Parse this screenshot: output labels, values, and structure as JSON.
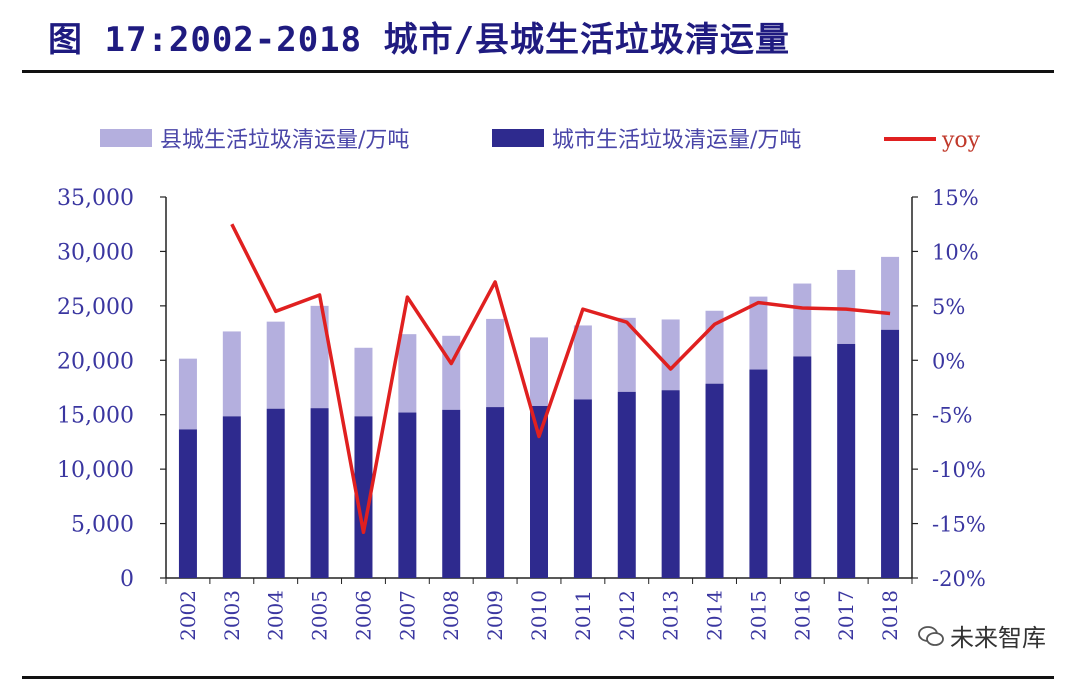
{
  "chart_data": {
    "type": "bar+line",
    "title": "图 17:2002-2018 城市/县城生活垃圾清运量",
    "categories": [
      "2002",
      "2003",
      "2004",
      "2005",
      "2006",
      "2007",
      "2008",
      "2009",
      "2010",
      "2011",
      "2012",
      "2013",
      "2014",
      "2015",
      "2016",
      "2017",
      "2018"
    ],
    "series": [
      {
        "name": "县城生活垃圾清运量/万吨",
        "type": "bar",
        "stack": "total",
        "color": "#b4afde",
        "values": [
          6500,
          7800,
          8000,
          9400,
          6300,
          7200,
          6800,
          8100,
          6300,
          6800,
          6800,
          6500,
          6700,
          6700,
          6700,
          6800,
          6700
        ]
      },
      {
        "name": "城市生活垃圾清运量/万吨",
        "type": "bar",
        "stack": "total",
        "color": "#2e2a8e",
        "values": [
          13650,
          14850,
          15550,
          15600,
          14850,
          15200,
          15450,
          15700,
          15800,
          16400,
          17100,
          17250,
          17850,
          19150,
          20350,
          21500,
          22800
        ]
      },
      {
        "name": "yoy",
        "type": "line",
        "axis": "right",
        "color": "#e02020",
        "values": [
          null,
          12.5,
          4.5,
          6.0,
          -15.8,
          5.8,
          -0.3,
          7.2,
          -7.0,
          4.7,
          3.5,
          -0.8,
          3.3,
          5.3,
          4.8,
          4.7,
          4.3
        ]
      }
    ],
    "y_left": {
      "min": 0,
      "max": 35000,
      "step": 5000,
      "tick_labels": [
        "0",
        "5,000",
        "10,000",
        "15,000",
        "20,000",
        "25,000",
        "30,000",
        "35,000"
      ]
    },
    "y_right": {
      "min": -20,
      "max": 15,
      "step": 5,
      "tick_labels": [
        "-20%",
        "-15%",
        "-10%",
        "-5%",
        "0%",
        "5%",
        "10%",
        "15%"
      ]
    },
    "legend_position": "top"
  },
  "watermark": {
    "text": "未来智库"
  }
}
